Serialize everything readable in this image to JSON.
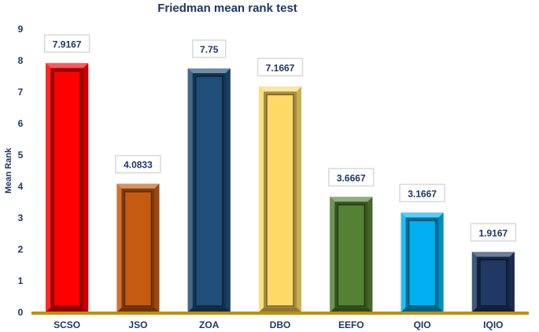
{
  "chart_data": {
    "type": "bar",
    "title": "Friedman mean rank test",
    "xlabel": "",
    "ylabel": "Mean Rank",
    "ylim": [
      0,
      9
    ],
    "yticks": [
      0,
      1,
      2,
      3,
      4,
      5,
      6,
      7,
      8,
      9
    ],
    "grid": false,
    "legend": "none",
    "categories": [
      "SCSO",
      "JSO",
      "ZOA",
      "DBO",
      "EEFO",
      "QIO",
      "IQIO"
    ],
    "values": [
      7.9167,
      4.0833,
      7.75,
      7.1667,
      3.6667,
      3.1667,
      1.9167
    ],
    "data_labels": [
      "7.9167",
      "4.0833",
      "7.75",
      "7.1667",
      "3.6667",
      "3.1667",
      "1.9167"
    ],
    "colors": [
      "#ff0000",
      "#c55a11",
      "#1f4e79",
      "#ffd966",
      "#548235",
      "#00b0f0",
      "#1f3864"
    ],
    "axis_color": "#bf9000"
  }
}
